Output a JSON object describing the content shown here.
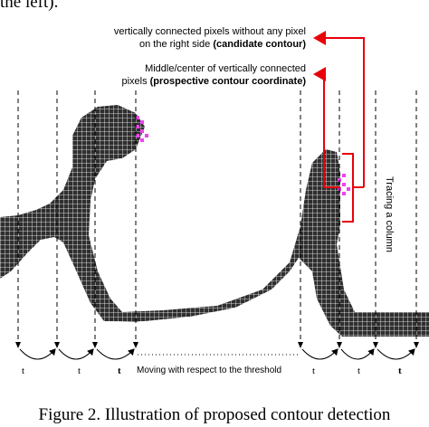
{
  "header": {
    "partial_text": "the left)."
  },
  "annotations": {
    "candidate": {
      "line1": "vertically connected pixels without any pixel",
      "line2_prefix": "on the right side ",
      "line2_bold": "(candidate contour)"
    },
    "prospective": {
      "line1": "Middle/center of vertically connected",
      "line2_prefix": "pixels ",
      "line2_bold": "(prospective contour coordinate)"
    },
    "tracing": "Tracing a column"
  },
  "threshold_label": "Moving with respect to the threshold",
  "step_labels": [
    "t",
    "t",
    "t",
    "t",
    "t",
    "t"
  ],
  "caption": "Figure 2.    Illustration of proposed contour detection",
  "colors": {
    "pixel": "#2f2f2f",
    "highlight": "#ee44ee",
    "arrow": "#e8000a",
    "grid": "#ffffff"
  }
}
